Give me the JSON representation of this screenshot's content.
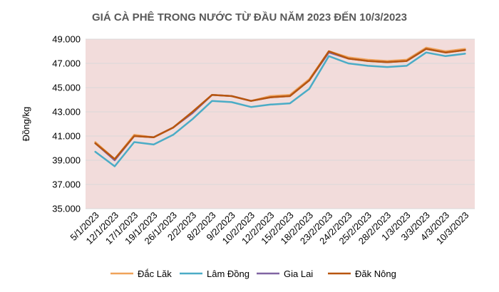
{
  "chart_data": {
    "type": "line",
    "title": "GIÁ CÀ PHÊ TRONG NƯỚC TỪ ĐẦU NĂM 2023 ĐẾN 10/3/2023",
    "xlabel": "",
    "ylabel": "Đồng/kg",
    "ylim": [
      35000,
      49000
    ],
    "yticks": [
      "35.000",
      "37.000",
      "39.000",
      "41.000",
      "43.000",
      "45.000",
      "47.000",
      "49.000"
    ],
    "ytick_values": [
      35000,
      37000,
      39000,
      41000,
      43000,
      45000,
      47000,
      49000
    ],
    "grid": true,
    "legend_position": "bottom",
    "plot_background": "#f2dcdb",
    "categories": [
      "5/1/2023",
      "12/1/2023",
      "17/1/2023",
      "19/1/2023",
      "26/1/2023",
      "2/2/2023",
      "8/2/2023",
      "9/2/2023",
      "10/2/2023",
      "12/2/2023",
      "15/2/2023",
      "18/2/2023",
      "23/2/2023",
      "24/2/2023",
      "25/2/2023",
      "28/2/2023",
      "1/3/2023",
      "3/3/2023",
      "4/3/2023",
      "10/3/2023"
    ],
    "series": [
      {
        "name": "Đắc Lăk",
        "color": "#f0a35a",
        "values": [
          40500,
          39100,
          41100,
          40900,
          41700,
          43000,
          44400,
          44300,
          43900,
          44300,
          44400,
          45700,
          48000,
          47500,
          47300,
          47200,
          47300,
          48300,
          48000,
          48200
        ]
      },
      {
        "name": "Lâm Đồng",
        "color": "#4bacc6",
        "values": [
          39700,
          38500,
          40500,
          40300,
          41100,
          42400,
          43900,
          43800,
          43400,
          43600,
          43700,
          44900,
          47600,
          47000,
          46800,
          46700,
          46800,
          47900,
          47600,
          47800
        ]
      },
      {
        "name": "Gia Lai",
        "color": "#8064a2",
        "values": [
          40400,
          39000,
          41000,
          40900,
          41700,
          42900,
          44400,
          44300,
          43900,
          44200,
          44300,
          45600,
          47900,
          47400,
          47200,
          47100,
          47200,
          48200,
          47900,
          48100
        ]
      },
      {
        "name": "Đăk Nông",
        "color": "#c0504d",
        "values": [
          40400,
          39100,
          41000,
          40900,
          41700,
          43000,
          44400,
          44300,
          43900,
          44200,
          44300,
          45600,
          48000,
          47400,
          47200,
          47100,
          47200,
          48200,
          47900,
          48100
        ]
      }
    ],
    "line_colors_drawn": [
      "#f0a35a",
      "#4bacc6",
      "#8064a2",
      "#b8560f"
    ]
  }
}
